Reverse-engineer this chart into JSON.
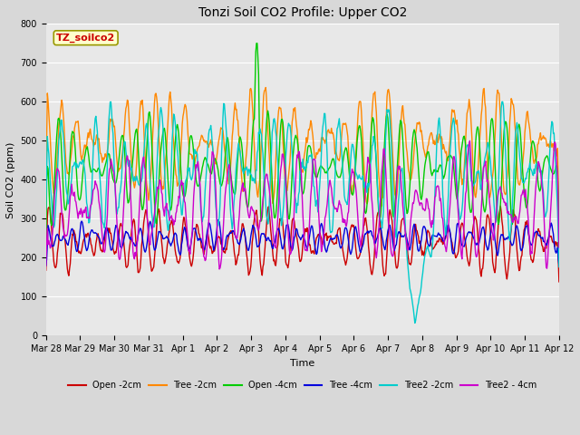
{
  "title": "Tonzi Soil CO2 Profile: Upper CO2",
  "xlabel": "Time",
  "ylabel": "Soil CO2 (ppm)",
  "ylim": [
    0,
    800
  ],
  "yticks": [
    0,
    100,
    200,
    300,
    400,
    500,
    600,
    700,
    800
  ],
  "legend_label": "TZ_soilco2",
  "series_labels": [
    "Open -2cm",
    "Tree -2cm",
    "Open -4cm",
    "Tree -4cm",
    "Tree2 -2cm",
    "Tree2 - 4cm"
  ],
  "series_colors": [
    "#cc0000",
    "#ff8800",
    "#00cc00",
    "#0000dd",
    "#00cccc",
    "#cc00cc"
  ],
  "x_tick_labels": [
    "Mar 28",
    "Mar 29",
    "Mar 30",
    "Mar 31",
    "Apr 1",
    "Apr 2",
    "Apr 3",
    "Apr 4",
    "Apr 5",
    "Apr 6",
    "Apr 7",
    "Apr 8",
    "Apr 9",
    "Apr 10",
    "Apr 11",
    "Apr 12"
  ],
  "n_days": 15,
  "pts_per_day": 48,
  "fig_width": 6.4,
  "fig_height": 4.8,
  "dpi": 100,
  "line_width": 1.0,
  "title_fontsize": 10,
  "axis_label_fontsize": 8,
  "tick_fontsize": 7,
  "legend_fontsize": 7,
  "annotation_fontsize": 8,
  "fig_bg": "#d8d8d8",
  "ax_bg": "#e8e8e8",
  "grid_color": "#ffffff",
  "legend_box_facecolor": "#ffffcc",
  "legend_box_edgecolor": "#999900",
  "legend_text_color": "#cc0000"
}
